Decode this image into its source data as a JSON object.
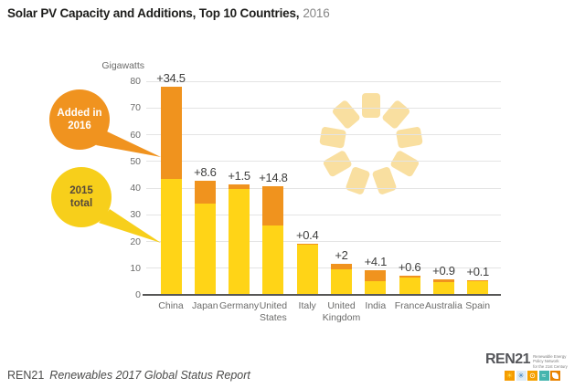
{
  "title": {
    "main": "Solar PV Capacity and Additions, Top 10 Countries,",
    "year": "2016"
  },
  "chart_data": {
    "type": "bar",
    "stacked": true,
    "title": "Solar PV Capacity and Additions, Top 10 Countries, 2016",
    "unit_label": "Gigawatts",
    "categories": [
      "China",
      "Japan",
      "Germany",
      "United States",
      "Italy",
      "United Kingdom",
      "India",
      "France",
      "Australia",
      "Spain"
    ],
    "series": [
      {
        "name": "2015 total",
        "color": "#FFD417",
        "values": [
          43.5,
          34.2,
          39.7,
          25.9,
          18.9,
          9.7,
          5.0,
          6.5,
          4.9,
          5.4
        ]
      },
      {
        "name": "Added in 2016",
        "color": "#F0931E",
        "values": [
          34.5,
          8.6,
          1.5,
          14.8,
          0.4,
          2.0,
          4.1,
          0.6,
          0.9,
          0.1
        ]
      }
    ],
    "addition_labels": [
      "+34.5",
      "+8.6",
      "+1.5",
      "+14.8",
      "+0.4",
      "+2",
      "+4.1",
      "+0.6",
      "+0.9",
      "+0.1"
    ],
    "ylabel": "Gigawatts",
    "ylim": [
      0,
      80
    ],
    "ytick_step": 10,
    "grid": true,
    "legend_position": "left-callouts"
  },
  "callouts": {
    "added": {
      "line1": "Added in",
      "line2": "2016"
    },
    "total": {
      "line1": "2015",
      "line2": "total"
    }
  },
  "footer": {
    "source_org": "REN21",
    "source_title": "Renewables 2017 Global Status Report"
  },
  "logo": {
    "name": "REN21",
    "tagline_line1": "Renewable Energy",
    "tagline_line2": "Policy Network",
    "tagline_line3": "for the 21st Century",
    "icons": [
      "sun",
      "turbine",
      "power",
      "water",
      "leaf"
    ]
  },
  "colors": {
    "bar_2015": "#FFD417",
    "bar_added": "#F0931E",
    "bubble_added": "#F0931F",
    "bubble_total": "#F7CF1B",
    "sun_decoration": "#F8DC96",
    "gridline": "#e4e4e4",
    "axis": "#575756",
    "text_dark": "#3e3e3d",
    "text_gray": "#6b6b6a",
    "logo_teal": "#45B5AE",
    "logo_orange": "#F59C00",
    "logo_dark_orange": "#E98300",
    "logo_blue": "#2E75B6"
  }
}
